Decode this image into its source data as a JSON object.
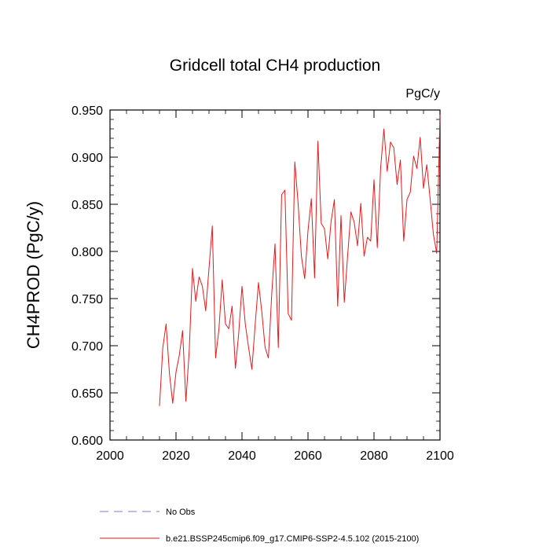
{
  "chart_data": {
    "type": "line",
    "title": "Gridcell total CH4 production",
    "units": "PgC/y",
    "xlabel": "",
    "ylabel": "CH4PROD  (PgC/y)",
    "xlim": [
      2000,
      2100
    ],
    "ylim": [
      0.6,
      0.95
    ],
    "x_ticks": [
      2000,
      2020,
      2040,
      2060,
      2080,
      2100
    ],
    "x_tick_labels": [
      "2000",
      "2020",
      "2040",
      "2060",
      "2080",
      "2100"
    ],
    "y_ticks": [
      0.6,
      0.65,
      0.7,
      0.75,
      0.8,
      0.85,
      0.9,
      0.95
    ],
    "y_tick_labels": [
      "0.600",
      "0.650",
      "0.700",
      "0.750",
      "0.800",
      "0.850",
      "0.900",
      "0.950"
    ],
    "grid": false,
    "legend_position": "bottom",
    "series": [
      {
        "name": "No Obs",
        "style": "dashed",
        "color": "#7b7bd6",
        "x": [],
        "y": []
      },
      {
        "name": "b.e21.BSSP245cmip6.f09_g17.CMIP6-SSP2-4.5.102 (2015-2100)",
        "style": "solid",
        "color": "#e31a1c",
        "x": [
          2015,
          2016,
          2017,
          2018,
          2019,
          2020,
          2021,
          2022,
          2023,
          2024,
          2025,
          2026,
          2027,
          2028,
          2029,
          2030,
          2031,
          2032,
          2033,
          2034,
          2035,
          2036,
          2037,
          2038,
          2039,
          2040,
          2041,
          2042,
          2043,
          2044,
          2045,
          2046,
          2047,
          2048,
          2049,
          2050,
          2051,
          2052,
          2053,
          2054,
          2055,
          2056,
          2057,
          2058,
          2059,
          2060,
          2061,
          2062,
          2063,
          2064,
          2065,
          2066,
          2067,
          2068,
          2069,
          2070,
          2071,
          2072,
          2073,
          2074,
          2075,
          2076,
          2077,
          2078,
          2079,
          2080,
          2081,
          2082,
          2083,
          2084,
          2085,
          2086,
          2087,
          2088,
          2089,
          2090,
          2091,
          2092,
          2093,
          2094,
          2095,
          2096,
          2097,
          2098,
          2099,
          2100
        ],
        "y": [
          0.636,
          0.698,
          0.723,
          0.671,
          0.639,
          0.672,
          0.69,
          0.716,
          0.641,
          0.694,
          0.782,
          0.747,
          0.773,
          0.763,
          0.737,
          0.782,
          0.827,
          0.687,
          0.717,
          0.77,
          0.723,
          0.718,
          0.742,
          0.676,
          0.713,
          0.763,
          0.723,
          0.698,
          0.675,
          0.723,
          0.767,
          0.736,
          0.698,
          0.687,
          0.754,
          0.808,
          0.698,
          0.86,
          0.865,
          0.734,
          0.727,
          0.895,
          0.851,
          0.795,
          0.771,
          0.822,
          0.856,
          0.772,
          0.917,
          0.83,
          0.824,
          0.792,
          0.832,
          0.855,
          0.742,
          0.838,
          0.746,
          0.795,
          0.842,
          0.831,
          0.806,
          0.851,
          0.795,
          0.815,
          0.811,
          0.876,
          0.804,
          0.888,
          0.93,
          0.885,
          0.916,
          0.91,
          0.871,
          0.897,
          0.811,
          0.855,
          0.863,
          0.901,
          0.888,
          0.921,
          0.867,
          0.892,
          0.856,
          0.818,
          0.798,
          0.945
        ]
      }
    ]
  }
}
